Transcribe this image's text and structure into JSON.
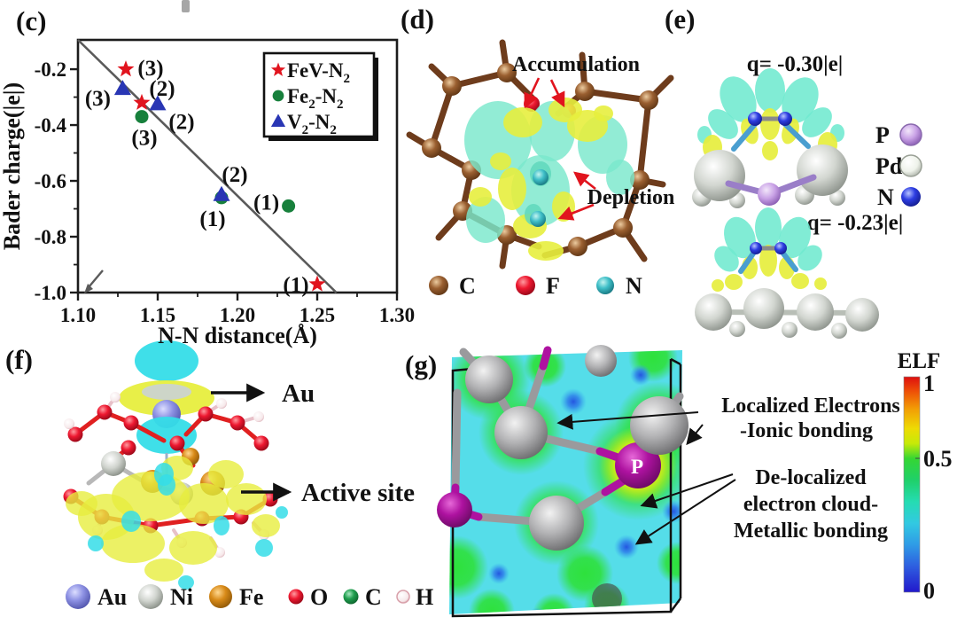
{
  "figure": {
    "panel_labels": {
      "c": "(c)",
      "d": "(d)",
      "e": "(e)",
      "f": "(f)",
      "g": "(g)"
    }
  },
  "panels": {
    "c": {
      "chart_data": {
        "type": "scatter",
        "xlabel": "N-N distance(Å)",
        "ylabel": "Bader charge(|e|)",
        "xlim": [
          1.1,
          1.3
        ],
        "ylim": [
          -1.0,
          -0.095
        ],
        "x_ticks": [
          {
            "v": 1.1,
            "label": "1.10"
          },
          {
            "v": 1.15,
            "label": "1.15"
          },
          {
            "v": 1.2,
            "label": "1.20"
          },
          {
            "v": 1.25,
            "label": "1.25"
          },
          {
            "v": 1.3,
            "label": "1.30"
          }
        ],
        "x_minor": [
          1.125,
          1.175,
          1.225,
          1.275
        ],
        "y_ticks": [
          {
            "v": -0.2,
            "label": "-0.2"
          },
          {
            "v": -0.4,
            "label": "-0.4"
          },
          {
            "v": -0.6,
            "label": "-0.6"
          },
          {
            "v": -0.8,
            "label": "-0.8"
          },
          {
            "v": -1.0,
            "label": "-1.0"
          }
        ],
        "y_minor": [
          -0.3,
          -0.5,
          -0.7,
          -0.9
        ],
        "trend_line": {
          "x1": 1.1,
          "y1": -0.095,
          "x2": 1.262,
          "y2": -1.0
        },
        "grid": false,
        "legend_position": "top-right",
        "series": [
          {
            "name": [
              {
                "t": "FeV-N"
              },
              {
                "t": "2",
                "sub": true
              }
            ],
            "marker": "star",
            "color": "#e1141e",
            "points": [
              {
                "x": 1.13,
                "y": -0.2,
                "label": "(3)",
                "ldx": 28,
                "ldy": -1
              },
              {
                "x": 1.14,
                "y": -0.32,
                "label": "(2)",
                "ldx": 23,
                "ldy": -16
              },
              {
                "x": 1.25,
                "y": -0.97,
                "label": "(1)",
                "ldx": -24,
                "ldy": 1
              }
            ]
          },
          {
            "name": [
              {
                "t": "Fe"
              },
              {
                "t": "2",
                "sub": true
              },
              {
                "t": "-N"
              },
              {
                "t": "2",
                "sub": true
              }
            ],
            "marker": "circle",
            "color": "#17803c",
            "points": [
              {
                "x": 1.14,
                "y": -0.37,
                "label": "(3)",
                "ldx": 3,
                "ldy": 24
              },
              {
                "x": 1.19,
                "y": -0.66,
                "label": "(2)",
                "ldx": 15,
                "ldy": -26
              },
              {
                "x": 1.232,
                "y": -0.69,
                "label": "(1)",
                "ldx": -25,
                "ldy": -4
              }
            ]
          },
          {
            "name": [
              {
                "t": "V"
              },
              {
                "t": "2",
                "sub": true
              },
              {
                "t": "-N"
              },
              {
                "t": "2",
                "sub": true
              }
            ],
            "marker": "triangle",
            "color": "#2936b4",
            "points": [
              {
                "x": 1.128,
                "y": -0.27,
                "label": "(3)",
                "ldx": -28,
                "ldy": 11
              },
              {
                "x": 1.15,
                "y": -0.325,
                "label": "(2)",
                "ldx": 27,
                "ldy": 20
              },
              {
                "x": 1.19,
                "y": -0.65,
                "label": "(1)",
                "ldx": -10,
                "ldy": 27
              }
            ]
          }
        ]
      }
    },
    "d": {
      "annotation_color": "#e1141e",
      "annotations": {
        "accumulation": "Accumulation",
        "depletion": "Depletion"
      },
      "legend": [
        {
          "label": "C",
          "color": "#8a5a30"
        },
        {
          "label": "F",
          "color": "#ee1830"
        },
        {
          "label": "N",
          "color": "#3fbfc8"
        }
      ]
    },
    "e": {
      "q_top": "q= -0.30|e|",
      "q_bottom": "q= -0.23|e|",
      "legend": [
        {
          "label": "P",
          "color": "#d8c2ee"
        },
        {
          "label": "Pd",
          "color": "#eef2ea"
        },
        {
          "label": "N",
          "color": "#2d3de2"
        }
      ]
    },
    "f": {
      "annotations": {
        "au": "Au",
        "active_site": "Active site"
      },
      "legend": [
        {
          "label": "Au",
          "color": "#8e92e4"
        },
        {
          "label": "Ni",
          "color": "#d2d6d0"
        },
        {
          "label": "Fe",
          "color": "#d88a18"
        },
        {
          "label": "O",
          "color": "#ee1830"
        },
        {
          "label": "C",
          "color": "#1f9e4e"
        },
        {
          "label": "H",
          "color": "#f6e8ea"
        }
      ]
    },
    "g": {
      "atom_label": "P",
      "annotations": {
        "localized": [
          "Localized Electrons",
          "-Ionic bonding"
        ],
        "delocalized": [
          "De-localized",
          "electron cloud-",
          "Metallic bonding"
        ]
      },
      "colorbar": {
        "title": "ELF",
        "tick_top": "1",
        "tick_mid": "0.5",
        "tick_bottom": "0"
      }
    }
  }
}
